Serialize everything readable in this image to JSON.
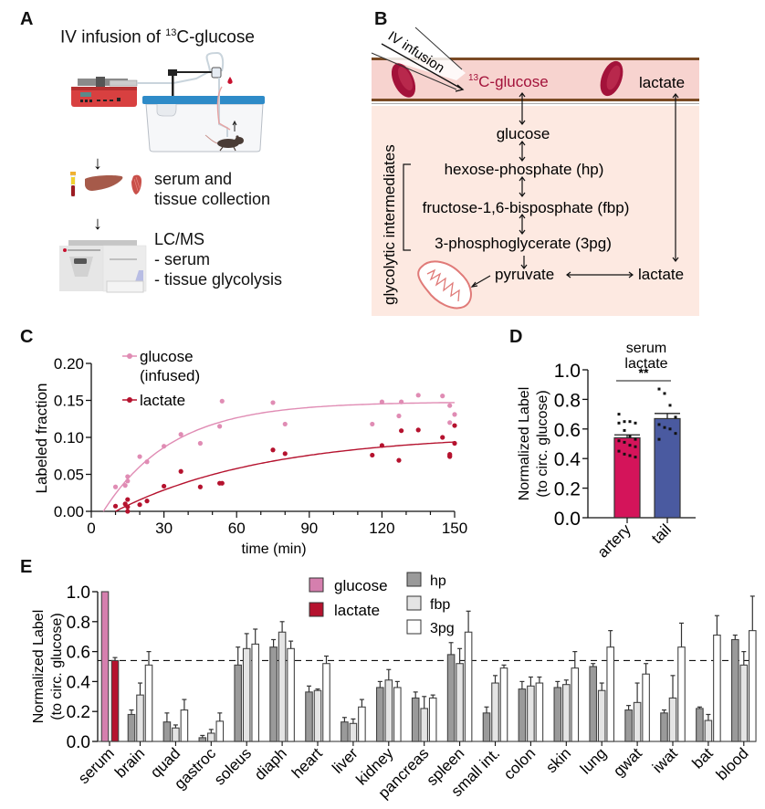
{
  "panels": {
    "A": {
      "letter": "A",
      "title_prefix": "IV infusion of ",
      "title_sup": "13",
      "title_suffix": "C-glucose",
      "arrow": "↓",
      "step2_line1": "serum and",
      "step2_line2": "tissue collection",
      "step3_line1": "LC/MS",
      "step3_line2": "- serum",
      "step3_line3": "- tissue glycolysis",
      "icons": [
        "syringe-pump-icon",
        "mouse-cage-icon",
        "mouse-icon",
        "blood-drop-icon",
        "blood-tube-icon",
        "liver-icon",
        "muscle-icon",
        "mass-spectrometer-icon"
      ]
    },
    "B": {
      "letter": "B",
      "iv_label": "IV infusion",
      "infused_sup": "13",
      "infused_label": "C-glucose",
      "vessel_lactate": "lactate",
      "glucose": "glucose",
      "hp": "hexose-phosphate (hp)",
      "fbp": "fructose-1,6-bisposphate (fbp)",
      "pg3": "3-phosphoglycerate (3pg)",
      "pyruvate": "pyruvate",
      "tissue_lactate": "lactate",
      "bracket_label": "glycolytic intermediates",
      "colors": {
        "vessel": "#f7d3cf",
        "vessel_wall": "#7a4a24",
        "tissue": "#fde9e1",
        "rbc": "#a3123a",
        "infused_text": "#a3123a",
        "mito": "#e07a78"
      }
    }
  },
  "chart_data": [
    {
      "panel": "C",
      "letter": "C",
      "type": "scatter",
      "title": "",
      "xlabel": "time (min)",
      "ylabel": "Labeled fraction",
      "xlim": [
        0,
        150
      ],
      "ylim": [
        0,
        0.2
      ],
      "xticks": [
        0,
        30,
        60,
        90,
        120,
        150
      ],
      "xtick_labels": [
        "0",
        "30",
        "60",
        "90",
        "120",
        "150"
      ],
      "yticks": [
        0,
        0.05,
        0.1,
        0.15,
        0.2
      ],
      "ytick_labels": [
        "0.00",
        "0.05",
        "0.10",
        "0.15",
        "0.20"
      ],
      "legend_position": "top-left",
      "series": [
        {
          "name": "glucose (infused)",
          "legend_line1": "glucose",
          "legend_line2": "(infused)",
          "color": "#e08cb4",
          "points": [
            [
              10,
              0.033
            ],
            [
              14,
              0.035
            ],
            [
              15,
              0.047
            ],
            [
              15,
              0.041
            ],
            [
              20,
              0.074
            ],
            [
              23,
              0.067
            ],
            [
              30,
              0.088
            ],
            [
              37,
              0.104
            ],
            [
              45,
              0.092
            ],
            [
              53,
              0.115
            ],
            [
              54,
              0.149
            ],
            [
              75,
              0.147
            ],
            [
              80,
              0.118
            ],
            [
              116,
              0.118
            ],
            [
              120,
              0.148
            ],
            [
              127,
              0.129
            ],
            [
              128,
              0.148
            ],
            [
              135,
              0.157
            ],
            [
              145,
              0.156
            ],
            [
              148,
              0.143
            ],
            [
              148,
              0.12
            ],
            [
              150,
              0.131
            ]
          ],
          "fit": {
            "model": "exponential rise",
            "plateau": 0.148,
            "k": 0.035,
            "x0": 5
          }
        },
        {
          "name": "lactate",
          "color": "#b5122e",
          "points": [
            [
              10,
              0.007
            ],
            [
              14,
              0.01
            ],
            [
              15,
              0.006
            ],
            [
              15,
              0.016
            ],
            [
              15,
              0.0
            ],
            [
              20,
              0.009
            ],
            [
              23,
              0.014
            ],
            [
              30,
              0.034
            ],
            [
              37,
              0.054
            ],
            [
              45,
              0.033
            ],
            [
              53,
              0.038
            ],
            [
              54,
              0.038
            ],
            [
              75,
              0.083
            ],
            [
              80,
              0.078
            ],
            [
              116,
              0.076
            ],
            [
              120,
              0.089
            ],
            [
              127,
              0.069
            ],
            [
              128,
              0.109
            ],
            [
              135,
              0.11
            ],
            [
              145,
              0.1
            ],
            [
              148,
              0.075
            ],
            [
              148,
              0.077
            ],
            [
              148,
              0.074
            ],
            [
              150,
              0.116
            ],
            [
              150,
              0.092
            ]
          ],
          "fit": {
            "model": "exponential rise",
            "plateau": 0.105,
            "k": 0.016,
            "x0": 10
          }
        }
      ]
    },
    {
      "panel": "D",
      "letter": "D",
      "type": "bar",
      "title_line1": "serum",
      "title_line2": "lactate",
      "ylabel_line1": "Normalized Label",
      "ylabel_line2": "(to circ. glucose)",
      "ylim": [
        0,
        1.0
      ],
      "yticks": [
        0,
        0.2,
        0.4,
        0.6,
        0.8,
        1.0
      ],
      "ytick_labels": [
        "0.0",
        "0.2",
        "0.4",
        "0.6",
        "0.8",
        "1.0"
      ],
      "categories": [
        "artery",
        "tail"
      ],
      "values": [
        0.54,
        0.67
      ],
      "errors": [
        0.02,
        0.035
      ],
      "colors": [
        "#d4145a",
        "#4a5aa0"
      ],
      "points": [
        [
          0.7,
          0.65,
          0.65,
          0.64,
          0.64,
          0.59,
          0.55,
          0.53,
          0.52,
          0.51,
          0.49,
          0.48,
          0.45,
          0.43,
          0.42,
          0.41
        ],
        [
          0.87,
          0.84,
          0.76,
          0.68,
          0.63,
          0.61,
          0.6,
          0.57,
          0.53
        ]
      ],
      "significance": "**"
    },
    {
      "panel": "E",
      "letter": "E",
      "type": "bar",
      "ylabel_line1": "Normalized Label",
      "ylabel_line2": "(to circ. glucose)",
      "ylim": [
        0,
        1.0
      ],
      "yticks": [
        0,
        0.2,
        0.4,
        0.6,
        0.8,
        1.0
      ],
      "ytick_labels": [
        "0.0",
        "0.2",
        "0.4",
        "0.6",
        "0.8",
        "1.0"
      ],
      "reference_line": 0.54,
      "legend_position": "top-center",
      "serum": {
        "category": "serum",
        "series": [
          {
            "name": "glucose",
            "color": "#d57fae",
            "value": 1.0,
            "error": 0
          },
          {
            "name": "lactate",
            "color": "#b5122e",
            "value": 0.54,
            "error": 0.02
          }
        ]
      },
      "series_names": [
        "hp",
        "fbp",
        "3pg"
      ],
      "series_colors": [
        "#9a9a9a",
        "#e4e4e4",
        "#ffffff"
      ],
      "categories": [
        "brain",
        "quad",
        "gastroc",
        "soleus",
        "diaph",
        "heart",
        "liver",
        "kidney",
        "pancreas",
        "spleen",
        "small int.",
        "colon",
        "skin",
        "lung",
        "gwat",
        "iwat",
        "bat",
        "blood"
      ],
      "series": [
        {
          "name": "hp",
          "values": [
            0.18,
            0.13,
            0.025,
            0.51,
            0.63,
            0.33,
            0.13,
            0.36,
            0.29,
            0.58,
            0.19,
            0.35,
            0.36,
            0.5,
            0.21,
            0.19,
            0.22,
            0.68
          ],
          "errors": [
            0.03,
            0.06,
            0.015,
            0.12,
            0.05,
            0.04,
            0.03,
            0.04,
            0.04,
            0.08,
            0.04,
            0.05,
            0.04,
            0.02,
            0.03,
            0.02,
            0.01,
            0.03
          ]
        },
        {
          "name": "fbp",
          "values": [
            0.31,
            0.09,
            0.055,
            0.62,
            0.73,
            0.34,
            0.12,
            0.41,
            0.22,
            0.52,
            0.39,
            0.37,
            0.38,
            0.34,
            0.26,
            0.29,
            0.14,
            0.51
          ],
          "errors": [
            0.08,
            0.02,
            0.025,
            0.1,
            0.07,
            0.01,
            0.03,
            0.07,
            0.08,
            0.1,
            0.05,
            0.06,
            0.03,
            0.05,
            0.13,
            0.15,
            0.04,
            0.09
          ]
        },
        {
          "name": "3pg",
          "values": [
            0.51,
            0.21,
            0.135,
            0.65,
            0.62,
            0.52,
            0.23,
            0.36,
            0.29,
            0.73,
            0.49,
            0.39,
            0.49,
            0.63,
            0.45,
            0.63,
            0.71,
            0.74
          ],
          "errors": [
            0.09,
            0.07,
            0.055,
            0.1,
            0.05,
            0.05,
            0.05,
            0.04,
            0.02,
            0.14,
            0.02,
            0.04,
            0.11,
            0.11,
            0.07,
            0.16,
            0.13,
            0.23
          ]
        }
      ]
    }
  ]
}
